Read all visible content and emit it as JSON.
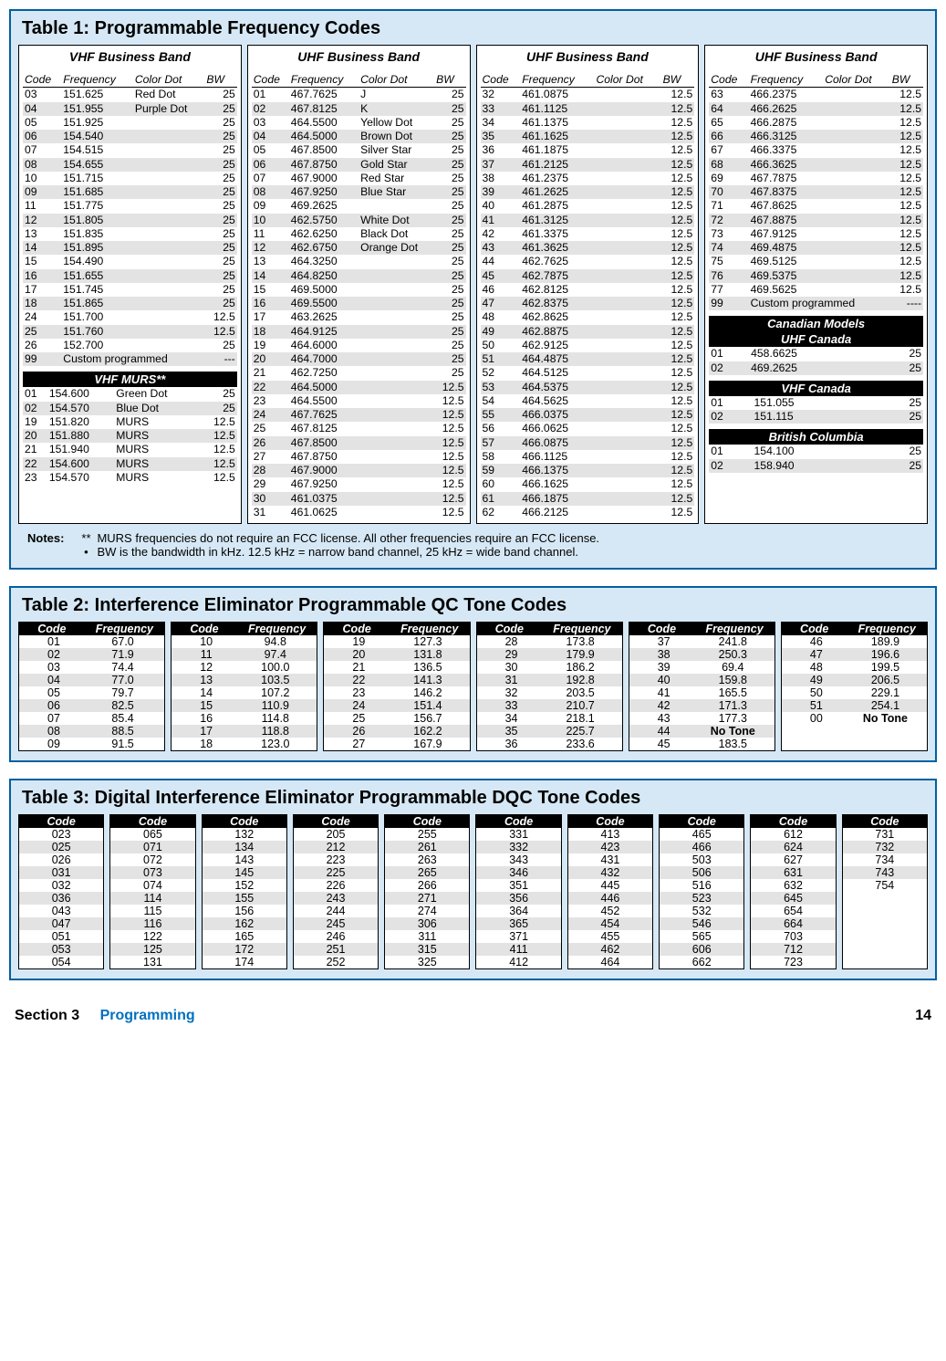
{
  "table1": {
    "title": "Table 1:  Programmable Frequency Codes",
    "headers": {
      "code": "Code",
      "freq": "Frequency",
      "color": "Color Dot",
      "bw": "BW"
    },
    "col1": {
      "band": "VHF Business Band",
      "rows": [
        [
          "03",
          "151.625",
          "Red Dot",
          "25"
        ],
        [
          "04",
          "151.955",
          "Purple Dot",
          "25"
        ],
        [
          "05",
          "151.925",
          "",
          "25"
        ],
        [
          "06",
          "154.540",
          "",
          "25"
        ],
        [
          "07",
          "154.515",
          "",
          "25"
        ],
        [
          "08",
          "154.655",
          "",
          "25"
        ],
        [
          "10",
          "151.715",
          "",
          "25"
        ],
        [
          "09",
          "151.685",
          "",
          "25"
        ],
        [
          "11",
          "151.775",
          "",
          "25"
        ],
        [
          "12",
          "151.805",
          "",
          "25"
        ],
        [
          "13",
          "151.835",
          "",
          "25"
        ],
        [
          "14",
          "151.895",
          "",
          "25"
        ],
        [
          "15",
          "154.490",
          "",
          "25"
        ],
        [
          "16",
          "151.655",
          "",
          "25"
        ],
        [
          "17",
          "151.745",
          "",
          "25"
        ],
        [
          "18",
          "151.865",
          "",
          "25"
        ],
        [
          "24",
          "151.700",
          "",
          "12.5"
        ],
        [
          "25",
          "151.760",
          "",
          "12.5"
        ],
        [
          "26",
          "152.700",
          "",
          "25"
        ],
        [
          "99",
          "Custom programmed",
          "",
          "---"
        ]
      ],
      "murs_title": "VHF MURS**",
      "murs": [
        [
          "01",
          "154.600",
          "Green Dot",
          "25"
        ],
        [
          "02",
          "154.570",
          "Blue Dot",
          "25"
        ],
        [
          "19",
          "151.820",
          "MURS",
          "12.5"
        ],
        [
          "20",
          "151.880",
          "MURS",
          "12.5"
        ],
        [
          "21",
          "151.940",
          "MURS",
          "12.5"
        ],
        [
          "22",
          "154.600",
          "MURS",
          "12.5"
        ],
        [
          "23",
          "154.570",
          "MURS",
          "12.5"
        ]
      ]
    },
    "col2": {
      "band": "UHF Business Band",
      "rows": [
        [
          "01",
          "467.7625",
          "J",
          "25"
        ],
        [
          "02",
          "467.8125",
          "K",
          "25"
        ],
        [
          "03",
          "464.5500",
          "Yellow Dot",
          "25"
        ],
        [
          "04",
          "464.5000",
          "Brown Dot",
          "25"
        ],
        [
          "05",
          "467.8500",
          "Silver Star",
          "25"
        ],
        [
          "06",
          "467.8750",
          "Gold Star",
          "25"
        ],
        [
          "07",
          "467.9000",
          "Red Star",
          "25"
        ],
        [
          "08",
          "467.9250",
          "Blue Star",
          "25"
        ],
        [
          "09",
          "469.2625",
          "",
          "25"
        ],
        [
          "10",
          "462.5750",
          "White Dot",
          "25"
        ],
        [
          "11",
          "462.6250",
          "Black Dot",
          "25"
        ],
        [
          "12",
          "462.6750",
          "Orange Dot",
          "25"
        ],
        [
          "13",
          "464.3250",
          "",
          "25"
        ],
        [
          "14",
          "464.8250",
          "",
          "25"
        ],
        [
          "15",
          "469.5000",
          "",
          "25"
        ],
        [
          "16",
          "469.5500",
          "",
          "25"
        ],
        [
          "17",
          "463.2625",
          "",
          "25"
        ],
        [
          "18",
          "464.9125",
          "",
          "25"
        ],
        [
          "19",
          "464.6000",
          "",
          "25"
        ],
        [
          "20",
          "464.7000",
          "",
          "25"
        ],
        [
          "21",
          "462.7250",
          "",
          "25"
        ],
        [
          "22",
          "464.5000",
          "",
          "12.5"
        ],
        [
          "23",
          "464.5500",
          "",
          "12.5"
        ],
        [
          "24",
          "467.7625",
          "",
          "12.5"
        ],
        [
          "25",
          "467.8125",
          "",
          "12.5"
        ],
        [
          "26",
          "467.8500",
          "",
          "12.5"
        ],
        [
          "27",
          "467.8750",
          "",
          "12.5"
        ],
        [
          "28",
          "467.9000",
          "",
          "12.5"
        ],
        [
          "29",
          "467.9250",
          "",
          "12.5"
        ],
        [
          "30",
          "461.0375",
          "",
          "12.5"
        ],
        [
          "31",
          "461.0625",
          "",
          "12.5"
        ]
      ]
    },
    "col3": {
      "band": "UHF Business Band",
      "rows": [
        [
          "32",
          "461.0875",
          "",
          "12.5"
        ],
        [
          "33",
          "461.1125",
          "",
          "12.5"
        ],
        [
          "34",
          "461.1375",
          "",
          "12.5"
        ],
        [
          "35",
          "461.1625",
          "",
          "12.5"
        ],
        [
          "36",
          "461.1875",
          "",
          "12.5"
        ],
        [
          "37",
          "461.2125",
          "",
          "12.5"
        ],
        [
          "38",
          "461.2375",
          "",
          "12.5"
        ],
        [
          "39",
          "461.2625",
          "",
          "12.5"
        ],
        [
          "40",
          "461.2875",
          "",
          "12.5"
        ],
        [
          "41",
          "461.3125",
          "",
          "12.5"
        ],
        [
          "42",
          "461.3375",
          "",
          "12.5"
        ],
        [
          "43",
          "461.3625",
          "",
          "12.5"
        ],
        [
          "44",
          "462.7625",
          "",
          "12.5"
        ],
        [
          "45",
          "462.7875",
          "",
          "12.5"
        ],
        [
          "46",
          "462.8125",
          "",
          "12.5"
        ],
        [
          "47",
          "462.8375",
          "",
          "12.5"
        ],
        [
          "48",
          "462.8625",
          "",
          "12.5"
        ],
        [
          "49",
          "462.8875",
          "",
          "12.5"
        ],
        [
          "50",
          "462.9125",
          "",
          "12.5"
        ],
        [
          "51",
          "464.4875",
          "",
          "12.5"
        ],
        [
          "52",
          "464.5125",
          "",
          "12.5"
        ],
        [
          "53",
          "464.5375",
          "",
          "12.5"
        ],
        [
          "54",
          "464.5625",
          "",
          "12.5"
        ],
        [
          "55",
          "466.0375",
          "",
          "12.5"
        ],
        [
          "56",
          "466.0625",
          "",
          "12.5"
        ],
        [
          "57",
          "466.0875",
          "",
          "12.5"
        ],
        [
          "58",
          "466.1125",
          "",
          "12.5"
        ],
        [
          "59",
          "466.1375",
          "",
          "12.5"
        ],
        [
          "60",
          "466.1625",
          "",
          "12.5"
        ],
        [
          "61",
          "466.1875",
          "",
          "12.5"
        ],
        [
          "62",
          "466.2125",
          "",
          "12.5"
        ]
      ]
    },
    "col4": {
      "band": "UHF Business Band",
      "rows": [
        [
          "63",
          "466.2375",
          "",
          "12.5"
        ],
        [
          "64",
          "466.2625",
          "",
          "12.5"
        ],
        [
          "65",
          "466.2875",
          "",
          "12.5"
        ],
        [
          "66",
          "466.3125",
          "",
          "12.5"
        ],
        [
          "67",
          "466.3375",
          "",
          "12.5"
        ],
        [
          "68",
          "466.3625",
          "",
          "12.5"
        ],
        [
          "69",
          "467.7875",
          "",
          "12.5"
        ],
        [
          "70",
          "467.8375",
          "",
          "12.5"
        ],
        [
          "71",
          "467.8625",
          "",
          "12.5"
        ],
        [
          "72",
          "467.8875",
          "",
          "12.5"
        ],
        [
          "73",
          "467.9125",
          "",
          "12.5"
        ],
        [
          "74",
          "469.4875",
          "",
          "12.5"
        ],
        [
          "75",
          "469.5125",
          "",
          "12.5"
        ],
        [
          "76",
          "469.5375",
          "",
          "12.5"
        ],
        [
          "77",
          "469.5625",
          "",
          "12.5"
        ],
        [
          "99",
          "Custom programmed",
          "",
          "----"
        ]
      ],
      "can_title1": "Canadian Models",
      "can_title2": "UHF Canada",
      "canada_uhf": [
        [
          "01",
          "458.6625",
          "",
          "25"
        ],
        [
          "02",
          "469.2625",
          "",
          "25"
        ]
      ],
      "vhf_can_title": "VHF Canada",
      "canada_vhf": [
        [
          "01",
          "151.055",
          "",
          "25"
        ],
        [
          "02",
          "151.115",
          "",
          "25"
        ]
      ],
      "bc_title": "British Columbia",
      "bc": [
        [
          "01",
          "154.100",
          "",
          "25"
        ],
        [
          "02",
          "158.940",
          "",
          "25"
        ]
      ]
    },
    "notes_label": "Notes:",
    "note1_mark": "**",
    "note1": "MURS frequencies do not require an FCC license.  All other frequencies require an FCC license.",
    "note2_mark": "•",
    "note2": "BW is the bandwidth in kHz.  12.5 kHz = narrow band channel, 25 kHz = wide band channel."
  },
  "table2": {
    "title": "Table 2:  Interference Eliminator Programmable QC Tone Codes",
    "head_code": "Code",
    "head_freq": "Frequency",
    "cols": [
      [
        [
          "01",
          "67.0"
        ],
        [
          "02",
          "71.9"
        ],
        [
          "03",
          "74.4"
        ],
        [
          "04",
          "77.0"
        ],
        [
          "05",
          "79.7"
        ],
        [
          "06",
          "82.5"
        ],
        [
          "07",
          "85.4"
        ],
        [
          "08",
          "88.5"
        ],
        [
          "09",
          "91.5"
        ]
      ],
      [
        [
          "10",
          "94.8"
        ],
        [
          "11",
          "97.4"
        ],
        [
          "12",
          "100.0"
        ],
        [
          "13",
          "103.5"
        ],
        [
          "14",
          "107.2"
        ],
        [
          "15",
          "110.9"
        ],
        [
          "16",
          "114.8"
        ],
        [
          "17",
          "118.8"
        ],
        [
          "18",
          "123.0"
        ]
      ],
      [
        [
          "19",
          "127.3"
        ],
        [
          "20",
          "131.8"
        ],
        [
          "21",
          "136.5"
        ],
        [
          "22",
          "141.3"
        ],
        [
          "23",
          "146.2"
        ],
        [
          "24",
          "151.4"
        ],
        [
          "25",
          "156.7"
        ],
        [
          "26",
          "162.2"
        ],
        [
          "27",
          "167.9"
        ]
      ],
      [
        [
          "28",
          "173.8"
        ],
        [
          "29",
          "179.9"
        ],
        [
          "30",
          "186.2"
        ],
        [
          "31",
          "192.8"
        ],
        [
          "32",
          "203.5"
        ],
        [
          "33",
          "210.7"
        ],
        [
          "34",
          "218.1"
        ],
        [
          "35",
          "225.7"
        ],
        [
          "36",
          "233.6"
        ]
      ],
      [
        [
          "37",
          "241.8"
        ],
        [
          "38",
          "250.3"
        ],
        [
          "39",
          "69.4"
        ],
        [
          "40",
          "159.8"
        ],
        [
          "41",
          "165.5"
        ],
        [
          "42",
          "171.3"
        ],
        [
          "43",
          "177.3"
        ],
        [
          "44",
          "No Tone"
        ],
        [
          "45",
          "183.5"
        ]
      ],
      [
        [
          "46",
          "189.9"
        ],
        [
          "47",
          "196.6"
        ],
        [
          "48",
          "199.5"
        ],
        [
          "49",
          "206.5"
        ],
        [
          "50",
          "229.1"
        ],
        [
          "51",
          "254.1"
        ],
        [
          "00",
          "No Tone"
        ]
      ]
    ]
  },
  "table3": {
    "title": "Table 3:   Digital Interference Eliminator Programmable DQC Tone Codes",
    "head": "Code",
    "cols": [
      [
        "023",
        "025",
        "026",
        "031",
        "032",
        "036",
        "043",
        "047",
        "051",
        "053",
        "054"
      ],
      [
        "065",
        "071",
        "072",
        "073",
        "074",
        "114",
        "115",
        "116",
        "122",
        "125",
        "131"
      ],
      [
        "132",
        "134",
        "143",
        "145",
        "152",
        "155",
        "156",
        "162",
        "165",
        "172",
        "174"
      ],
      [
        "205",
        "212",
        "223",
        "225",
        "226",
        "243",
        "244",
        "245",
        "246",
        "251",
        "252"
      ],
      [
        "255",
        "261",
        "263",
        "265",
        "266",
        "271",
        "274",
        "306",
        "311",
        "315",
        "325"
      ],
      [
        "331",
        "332",
        "343",
        "346",
        "351",
        "356",
        "364",
        "365",
        "371",
        "411",
        "412"
      ],
      [
        "413",
        "423",
        "431",
        "432",
        "445",
        "446",
        "452",
        "454",
        "455",
        "462",
        "464"
      ],
      [
        "465",
        "466",
        "503",
        "506",
        "516",
        "523",
        "532",
        "546",
        "565",
        "606",
        "662"
      ],
      [
        "612",
        "624",
        "627",
        "631",
        "632",
        "645",
        "654",
        "664",
        "703",
        "712",
        "723"
      ],
      [
        "731",
        "732",
        "734",
        "743",
        "754"
      ]
    ]
  },
  "footer": {
    "section": "Section 3",
    "label": "Programming",
    "page": "14"
  }
}
